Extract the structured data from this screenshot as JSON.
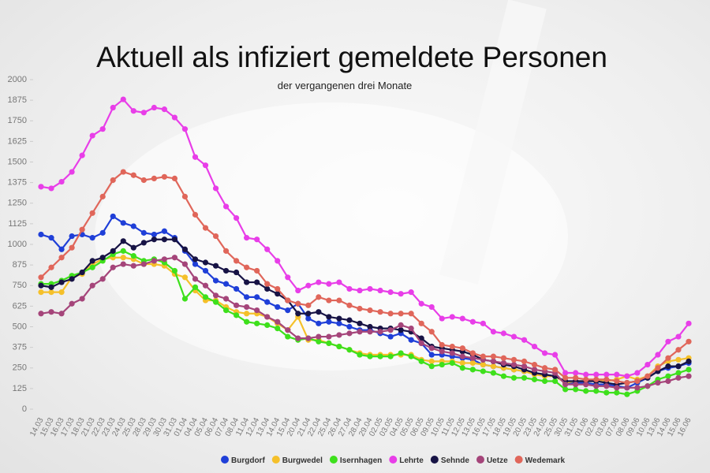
{
  "chart_data": {
    "type": "line",
    "title": "Aktuell als infiziert gemeldete Personen",
    "subtitle": "der vergangenen drei Monate",
    "categories": [
      "14.03",
      "15.03",
      "16.03",
      "17.03",
      "18.03",
      "21.03",
      "22.03",
      "23.03",
      "24.03",
      "25.03",
      "28.03",
      "29.03",
      "30.03",
      "31.03",
      "01.04",
      "04.04",
      "05.04",
      "06.04",
      "07.04",
      "08.04",
      "11.04",
      "12.04",
      "13.04",
      "14.04",
      "15.04",
      "20.04",
      "21.04",
      "22.04",
      "25.04",
      "26.04",
      "27.04",
      "28.04",
      "29.04",
      "02.05",
      "03.05",
      "04.05",
      "05.05",
      "06.05",
      "09.05",
      "10.05",
      "11.05",
      "12.05",
      "13.05",
      "16.05",
      "17.05",
      "18.05",
      "19.05",
      "20.05",
      "23.05",
      "24.05",
      "25.05",
      "30.05",
      "31.05",
      "01.06",
      "02.06",
      "03.06",
      "07.06",
      "08.06",
      "09.06",
      "10.06",
      "13.06",
      "14.06",
      "15.06",
      "16.06"
    ],
    "ylim": [
      0,
      2000
    ],
    "yticks": [
      0,
      125,
      250,
      375,
      500,
      625,
      750,
      875,
      1000,
      1125,
      1250,
      1375,
      1500,
      1625,
      1750,
      1875,
      2000
    ],
    "grid": false,
    "series": [
      {
        "name": "Burgdorf",
        "color": "#1f3fd8",
        "values": [
          1060,
          1040,
          970,
          1050,
          1060,
          1040,
          1070,
          1170,
          1130,
          1110,
          1070,
          1060,
          1080,
          1040,
          960,
          880,
          840,
          780,
          760,
          730,
          680,
          680,
          650,
          620,
          600,
          640,
          550,
          520,
          530,
          520,
          500,
          480,
          480,
          460,
          440,
          460,
          420,
          400,
          330,
          330,
          320,
          310,
          300,
          270,
          260,
          250,
          240,
          230,
          220,
          210,
          200,
          160,
          160,
          160,
          150,
          150,
          140,
          130,
          160,
          190,
          230,
          250,
          260,
          280
        ]
      },
      {
        "name": "Burgwedel",
        "color": "#f5c02a",
        "values": [
          710,
          710,
          710,
          800,
          820,
          880,
          910,
          920,
          920,
          910,
          880,
          880,
          870,
          820,
          800,
          720,
          660,
          660,
          620,
          590,
          580,
          580,
          560,
          520,
          480,
          560,
          420,
          420,
          400,
          380,
          360,
          340,
          330,
          330,
          330,
          330,
          330,
          300,
          290,
          290,
          290,
          280,
          280,
          270,
          260,
          250,
          240,
          230,
          210,
          200,
          200,
          160,
          170,
          170,
          170,
          170,
          180,
          200,
          180,
          200,
          260,
          290,
          300,
          310
        ]
      },
      {
        "name": "Isernhagen",
        "color": "#3ee01c",
        "values": [
          760,
          760,
          780,
          810,
          830,
          860,
          900,
          940,
          960,
          930,
          900,
          910,
          890,
          840,
          670,
          740,
          680,
          650,
          600,
          570,
          530,
          520,
          510,
          490,
          440,
          420,
          430,
          410,
          400,
          380,
          360,
          330,
          320,
          320,
          320,
          340,
          320,
          290,
          260,
          270,
          280,
          250,
          240,
          230,
          220,
          200,
          190,
          190,
          180,
          170,
          170,
          120,
          120,
          110,
          110,
          100,
          100,
          90,
          110,
          140,
          180,
          200,
          220,
          240
        ]
      },
      {
        "name": "Lehrte",
        "color": "#e83ee8",
        "values": [
          1350,
          1340,
          1380,
          1440,
          1540,
          1660,
          1700,
          1830,
          1880,
          1810,
          1800,
          1830,
          1820,
          1770,
          1700,
          1530,
          1480,
          1340,
          1230,
          1160,
          1040,
          1030,
          970,
          900,
          800,
          720,
          750,
          770,
          760,
          770,
          730,
          720,
          730,
          720,
          710,
          700,
          710,
          640,
          620,
          550,
          560,
          550,
          530,
          520,
          470,
          460,
          440,
          420,
          380,
          340,
          330,
          220,
          220,
          210,
          210,
          210,
          210,
          200,
          220,
          270,
          330,
          410,
          440,
          520
        ]
      },
      {
        "name": "Sehnde",
        "color": "#171345",
        "values": [
          750,
          740,
          770,
          790,
          830,
          900,
          920,
          960,
          1020,
          980,
          1010,
          1030,
          1030,
          1030,
          970,
          910,
          890,
          870,
          840,
          830,
          770,
          770,
          730,
          700,
          660,
          580,
          580,
          590,
          560,
          550,
          540,
          520,
          500,
          490,
          490,
          480,
          470,
          430,
          380,
          370,
          360,
          350,
          330,
          300,
          290,
          270,
          260,
          240,
          220,
          210,
          200,
          170,
          170,
          170,
          170,
          160,
          150,
          160,
          170,
          190,
          230,
          260,
          260,
          290
        ]
      },
      {
        "name": "Uetze",
        "color": "#a5457a",
        "values": [
          580,
          590,
          580,
          640,
          670,
          750,
          790,
          860,
          880,
          870,
          880,
          900,
          910,
          920,
          880,
          790,
          750,
          690,
          670,
          630,
          620,
          600,
          560,
          530,
          480,
          430,
          430,
          440,
          440,
          450,
          460,
          470,
          470,
          470,
          480,
          510,
          490,
          400,
          370,
          350,
          340,
          320,
          310,
          300,
          290,
          280,
          270,
          260,
          240,
          230,
          220,
          150,
          150,
          150,
          140,
          140,
          130,
          130,
          130,
          140,
          160,
          170,
          190,
          200
        ]
      },
      {
        "name": "Wedemark",
        "color": "#e0665a",
        "values": [
          800,
          860,
          920,
          980,
          1090,
          1190,
          1290,
          1390,
          1440,
          1420,
          1390,
          1400,
          1410,
          1400,
          1290,
          1180,
          1100,
          1050,
          960,
          900,
          860,
          840,
          760,
          730,
          660,
          640,
          630,
          680,
          660,
          660,
          630,
          610,
          600,
          590,
          580,
          580,
          580,
          520,
          470,
          390,
          380,
          370,
          340,
          320,
          320,
          310,
          300,
          290,
          270,
          250,
          240,
          190,
          190,
          180,
          180,
          180,
          170,
          160,
          170,
          200,
          250,
          310,
          360,
          410
        ]
      }
    ]
  }
}
